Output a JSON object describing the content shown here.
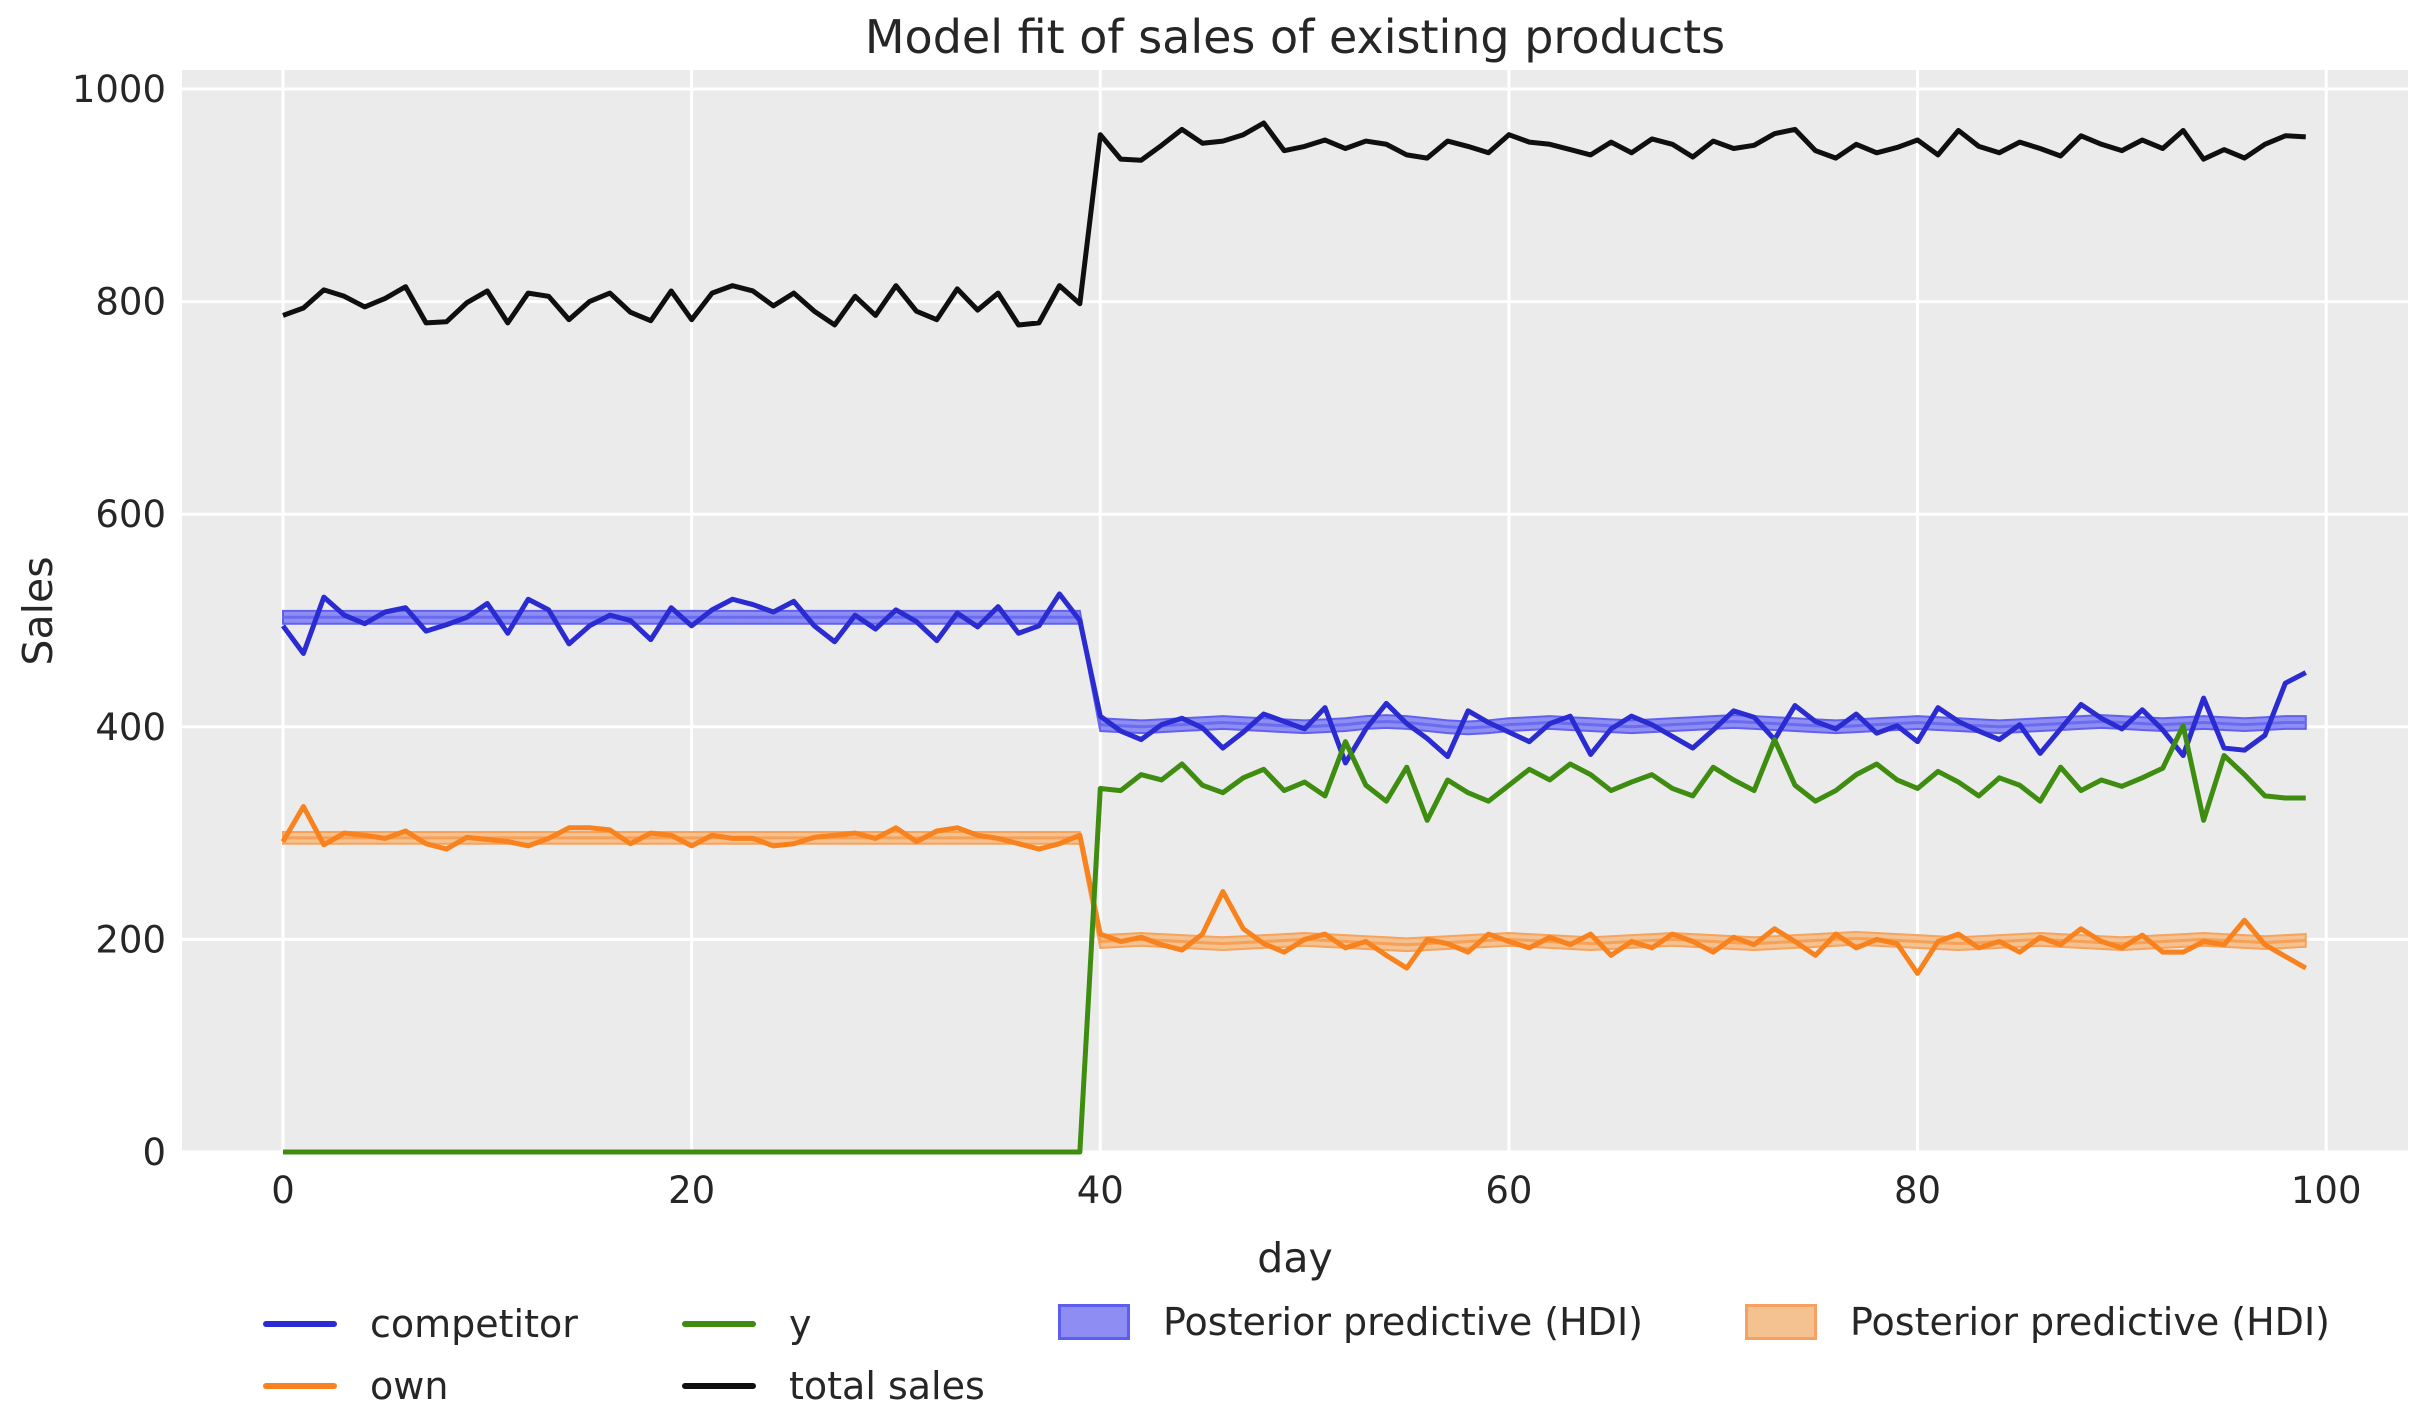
{
  "title": "Model fit of sales of existing products",
  "colors": {
    "panel_bg": "#ebebeb",
    "grid": "#ffffff",
    "text": "#262626",
    "competitor": "#2b2bd2",
    "own": "#f8821d",
    "y": "#3e8c10",
    "total_sales": "#0f0f0f",
    "hdi_blue_fill": "#8d8df3",
    "hdi_blue_edge": "#6161ef",
    "hdi_orange_fill": "#f4c191",
    "hdi_orange_edge": "#f7a35c"
  },
  "legend": {
    "entries": [
      {
        "label": "competitor",
        "swatch": "line",
        "color": "#2b2bd2"
      },
      {
        "label": "own",
        "swatch": "line",
        "color": "#f8821d"
      },
      {
        "label": "y",
        "swatch": "line",
        "color": "#3e8c10"
      },
      {
        "label": "total sales",
        "swatch": "line",
        "color": "#0f0f0f"
      },
      {
        "label": "Posterior predictive (HDI)",
        "swatch": "patch",
        "fill": "#8d8df3",
        "edge": "#5d5df0"
      },
      {
        "label": "Posterior predictive (HDI)",
        "swatch": "patch",
        "fill": "#f4c191",
        "edge": "#f7a05f"
      }
    ]
  },
  "chart_data": {
    "type": "line",
    "title": "Model fit of sales of existing products",
    "xlabel": "day",
    "ylabel": "Sales",
    "xlim": [
      -5,
      104
    ],
    "ylim": [
      0,
      1000
    ],
    "xticks": [
      0,
      20,
      40,
      60,
      80,
      100
    ],
    "yticks": [
      0,
      200,
      400,
      600,
      800,
      1000
    ],
    "grid": true,
    "legend_position": "below",
    "x": [
      0,
      1,
      2,
      3,
      4,
      5,
      6,
      7,
      8,
      9,
      10,
      11,
      12,
      13,
      14,
      15,
      16,
      17,
      18,
      19,
      20,
      21,
      22,
      23,
      24,
      25,
      26,
      27,
      28,
      29,
      30,
      31,
      32,
      33,
      34,
      35,
      36,
      37,
      38,
      39,
      40,
      41,
      42,
      43,
      44,
      45,
      46,
      47,
      48,
      49,
      50,
      51,
      52,
      53,
      54,
      55,
      56,
      57,
      58,
      59,
      60,
      61,
      62,
      63,
      64,
      65,
      66,
      67,
      68,
      69,
      70,
      71,
      72,
      73,
      74,
      75,
      76,
      77,
      78,
      79,
      80,
      81,
      82,
      83,
      84,
      85,
      86,
      87,
      88,
      89,
      90,
      91,
      92,
      93,
      94,
      95,
      96,
      97,
      98,
      99
    ],
    "series": [
      {
        "name": "competitor",
        "color": "#2b2bd2",
        "values": [
          495,
          469,
          522,
          505,
          497,
          508,
          512,
          490,
          496,
          503,
          516,
          488,
          520,
          510,
          478,
          495,
          505,
          500,
          482,
          512,
          495,
          510,
          520,
          515,
          508,
          518,
          495,
          480,
          505,
          492,
          510,
          499,
          481,
          507,
          494,
          513,
          488,
          495,
          525,
          500,
          410,
          396,
          388,
          402,
          408,
          399,
          380,
          395,
          412,
          405,
          398,
          418,
          366,
          398,
          422,
          403,
          389,
          372,
          415,
          404,
          395,
          386,
          403,
          410,
          374,
          398,
          410,
          402,
          391,
          380,
          397,
          415,
          409,
          388,
          420,
          405,
          398,
          412,
          394,
          401,
          386,
          418,
          405,
          396,
          388,
          402,
          375,
          398,
          421,
          408,
          398,
          416,
          397,
          373,
          427,
          380,
          378,
          392,
          441,
          451
        ]
      },
      {
        "name": "own",
        "color": "#f8821d",
        "values": [
          292,
          325,
          289,
          300,
          298,
          295,
          302,
          290,
          285,
          296,
          294,
          292,
          288,
          295,
          305,
          305,
          303,
          290,
          300,
          298,
          288,
          298,
          295,
          295,
          288,
          290,
          296,
          298,
          300,
          295,
          305,
          292,
          302,
          305,
          298,
          295,
          290,
          285,
          290,
          298,
          205,
          198,
          202,
          195,
          190,
          205,
          245,
          210,
          196,
          188,
          200,
          205,
          192,
          198,
          185,
          173,
          200,
          196,
          188,
          205,
          198,
          192,
          202,
          195,
          205,
          185,
          198,
          192,
          205,
          198,
          188,
          202,
          195,
          210,
          198,
          185,
          205,
          192,
          200,
          196,
          168,
          198,
          205,
          192,
          198,
          188,
          202,
          195,
          210,
          198,
          192,
          204,
          188,
          188,
          198,
          195,
          218,
          195,
          184,
          173
        ]
      },
      {
        "name": "y",
        "color": "#3e8c10",
        "values": [
          0,
          0,
          0,
          0,
          0,
          0,
          0,
          0,
          0,
          0,
          0,
          0,
          0,
          0,
          0,
          0,
          0,
          0,
          0,
          0,
          0,
          0,
          0,
          0,
          0,
          0,
          0,
          0,
          0,
          0,
          0,
          0,
          0,
          0,
          0,
          0,
          0,
          0,
          0,
          0,
          342,
          340,
          355,
          350,
          365,
          345,
          338,
          352,
          360,
          340,
          348,
          335,
          386,
          345,
          330,
          362,
          312,
          350,
          338,
          330,
          345,
          360,
          350,
          365,
          355,
          340,
          348,
          355,
          342,
          335,
          362,
          350,
          340,
          388,
          345,
          330,
          340,
          355,
          365,
          350,
          342,
          358,
          348,
          335,
          352,
          345,
          330,
          362,
          340,
          350,
          344,
          352,
          361,
          401,
          312,
          373,
          355,
          335,
          333,
          333
        ]
      },
      {
        "name": "total sales",
        "color": "#0f0f0f",
        "values": [
          787,
          794,
          811,
          805,
          795,
          803,
          814,
          780,
          781,
          799,
          810,
          780,
          808,
          805,
          783,
          800,
          808,
          790,
          782,
          810,
          783,
          808,
          815,
          810,
          796,
          808,
          791,
          778,
          805,
          787,
          815,
          791,
          783,
          812,
          792,
          808,
          778,
          780,
          815,
          798,
          957,
          934,
          933,
          947,
          962,
          949,
          951,
          957,
          968,
          942,
          946,
          952,
          944,
          951,
          948,
          938,
          935,
          951,
          946,
          940,
          957,
          950,
          948,
          943,
          938,
          950,
          940,
          953,
          948,
          936,
          951,
          944,
          947,
          958,
          962,
          942,
          935,
          948,
          940,
          945,
          952,
          938,
          961,
          946,
          940,
          950,
          944,
          937,
          956,
          948,
          942,
          952,
          944,
          961,
          934,
          943,
          935,
          948,
          956,
          955
        ]
      }
    ],
    "hdi_bands": [
      {
        "name": "Posterior predictive (HDI)",
        "series": "competitor",
        "fill": "#8d8df3",
        "edge": "#6161ef",
        "mean_color": "#6b6bf0",
        "lo": [
          497,
          497,
          497,
          497,
          497,
          497,
          497,
          497,
          497,
          497,
          497,
          497,
          497,
          497,
          497,
          497,
          497,
          497,
          497,
          497,
          497,
          497,
          497,
          497,
          497,
          497,
          497,
          497,
          497,
          497,
          497,
          497,
          497,
          497,
          497,
          497,
          497,
          497,
          497,
          497,
          396,
          395,
          394,
          395,
          396,
          397,
          398,
          397,
          396,
          395,
          394,
          395,
          396,
          398,
          399,
          398,
          396,
          394,
          393,
          394,
          396,
          397,
          398,
          397,
          396,
          395,
          394,
          395,
          396,
          397,
          398,
          399,
          398,
          397,
          396,
          395,
          394,
          395,
          396,
          397,
          398,
          397,
          396,
          395,
          394,
          395,
          396,
          397,
          398,
          399,
          398,
          397,
          396,
          397,
          398,
          397,
          396,
          397,
          398,
          398
        ],
        "hi": [
          509,
          509,
          509,
          509,
          509,
          509,
          509,
          509,
          509,
          509,
          509,
          509,
          509,
          509,
          509,
          509,
          509,
          509,
          509,
          509,
          509,
          509,
          509,
          509,
          509,
          509,
          509,
          509,
          509,
          509,
          509,
          509,
          509,
          509,
          509,
          509,
          509,
          509,
          509,
          509,
          408,
          407,
          406,
          407,
          408,
          409,
          410,
          409,
          408,
          407,
          406,
          407,
          408,
          410,
          411,
          410,
          408,
          406,
          405,
          406,
          408,
          409,
          410,
          409,
          408,
          407,
          406,
          407,
          408,
          409,
          410,
          411,
          410,
          409,
          408,
          407,
          406,
          407,
          408,
          409,
          410,
          409,
          408,
          407,
          406,
          407,
          408,
          409,
          410,
          411,
          410,
          409,
          408,
          409,
          410,
          409,
          408,
          409,
          410,
          410
        ]
      },
      {
        "name": "Posterior predictive (HDI)",
        "series": "own",
        "fill": "#f4c191",
        "edge": "#f7a35c",
        "mean_color": "#f5a158",
        "lo": [
          290,
          290,
          290,
          290,
          290,
          290,
          290,
          290,
          290,
          290,
          290,
          290,
          290,
          290,
          290,
          290,
          290,
          290,
          290,
          290,
          290,
          290,
          290,
          290,
          290,
          290,
          290,
          290,
          290,
          290,
          290,
          290,
          290,
          290,
          290,
          290,
          290,
          290,
          290,
          290,
          192,
          193,
          194,
          193,
          192,
          191,
          190,
          191,
          192,
          193,
          194,
          193,
          192,
          191,
          190,
          189,
          190,
          191,
          192,
          193,
          194,
          193,
          192,
          191,
          190,
          191,
          192,
          193,
          194,
          193,
          192,
          191,
          190,
          191,
          192,
          193,
          194,
          195,
          194,
          193,
          192,
          191,
          190,
          191,
          192,
          193,
          194,
          193,
          192,
          191,
          190,
          191,
          192,
          193,
          194,
          193,
          192,
          191,
          192,
          193
        ],
        "hi": [
          301,
          301,
          301,
          301,
          301,
          301,
          301,
          301,
          301,
          301,
          301,
          301,
          301,
          301,
          301,
          301,
          301,
          301,
          301,
          301,
          301,
          301,
          301,
          301,
          301,
          301,
          301,
          301,
          301,
          301,
          301,
          301,
          301,
          301,
          301,
          301,
          301,
          301,
          301,
          301,
          204,
          205,
          206,
          205,
          204,
          203,
          202,
          203,
          204,
          205,
          206,
          205,
          204,
          203,
          202,
          201,
          202,
          203,
          204,
          205,
          206,
          205,
          204,
          203,
          202,
          203,
          204,
          205,
          206,
          205,
          204,
          203,
          202,
          203,
          204,
          205,
          206,
          207,
          206,
          205,
          204,
          203,
          202,
          203,
          204,
          205,
          206,
          205,
          204,
          203,
          202,
          203,
          204,
          205,
          206,
          205,
          204,
          203,
          204,
          205
        ]
      }
    ]
  }
}
